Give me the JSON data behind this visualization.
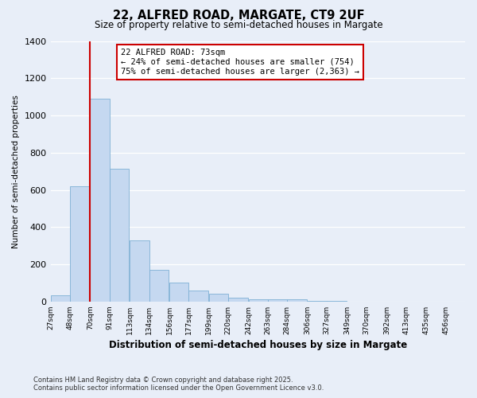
{
  "title_line1": "22, ALFRED ROAD, MARGATE, CT9 2UF",
  "title_line2": "Size of property relative to semi-detached houses in Margate",
  "xlabel": "Distribution of semi-detached houses by size in Margate",
  "ylabel": "Number of semi-detached properties",
  "footer_line1": "Contains HM Land Registry data © Crown copyright and database right 2025.",
  "footer_line2": "Contains public sector information licensed under the Open Government Licence v3.0.",
  "annotation_line1": "22 ALFRED ROAD: 73sqm",
  "annotation_line2": "← 24% of semi-detached houses are smaller (754)",
  "annotation_line3": "75% of semi-detached houses are larger (2,363) →",
  "bin_labels": [
    "27sqm",
    "48sqm",
    "70sqm",
    "91sqm",
    "113sqm",
    "134sqm",
    "156sqm",
    "177sqm",
    "199sqm",
    "220sqm",
    "242sqm",
    "263sqm",
    "284sqm",
    "306sqm",
    "327sqm",
    "349sqm",
    "370sqm",
    "392sqm",
    "413sqm",
    "435sqm",
    "456sqm"
  ],
  "bin_left_edges": [
    27,
    48,
    70,
    91,
    113,
    134,
    156,
    177,
    199,
    220,
    242,
    263,
    284,
    306,
    327,
    349,
    370,
    392,
    413,
    435,
    456
  ],
  "bar_heights": [
    35,
    620,
    1090,
    715,
    330,
    170,
    100,
    60,
    40,
    20,
    13,
    10,
    12,
    3,
    2,
    1,
    1,
    0,
    0,
    0,
    0
  ],
  "bar_color": "#c5d8f0",
  "bar_edge_color": "#7eb0d4",
  "vline_color": "#cc0000",
  "vline_x": 70,
  "ylim": [
    0,
    1400
  ],
  "yticks": [
    0,
    200,
    400,
    600,
    800,
    1000,
    1200,
    1400
  ],
  "bg_color": "#e8eef8",
  "grid_color": "#ffffff",
  "annotation_box_edge_color": "#cc0000",
  "annotation_box_face_color": "#ffffff"
}
